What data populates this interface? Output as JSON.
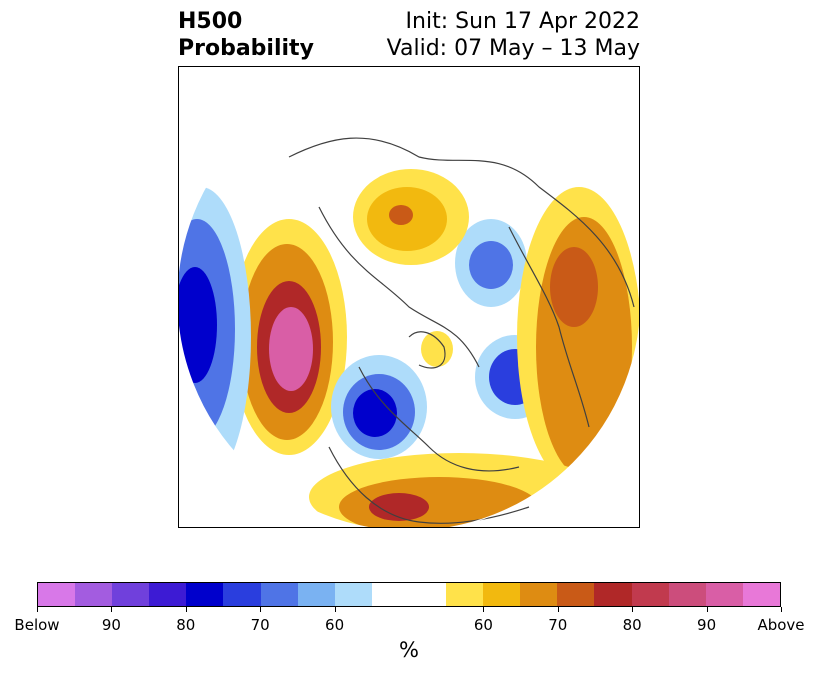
{
  "title": {
    "left_line1": "H500",
    "left_line2": "Probability",
    "right_line1": "Init: Sun 17 Apr 2022",
    "right_line2": "Valid: 07 May – 13 May"
  },
  "colorbar": {
    "unit": "%",
    "colors": [
      "#d878e8",
      "#a35ce0",
      "#7040dc",
      "#3d1bd4",
      "#0000cc",
      "#2a3ede",
      "#4f74e6",
      "#7ab2f2",
      "#aedcfa",
      "#ffffff",
      "#ffffff",
      "#ffe24a",
      "#f2b90f",
      "#de8c12",
      "#c95a17",
      "#b02828",
      "#c13a4e",
      "#cc4d7c",
      "#d95ea6",
      "#e878d8"
    ],
    "labels": [
      "Below",
      "90",
      "80",
      "70",
      "60",
      "60",
      "70",
      "80",
      "90",
      "Above"
    ]
  },
  "map": {
    "projection": "north-polar-stereographic",
    "feature_colors": {
      "coast": "#404040",
      "above_high": "#d95ea6",
      "above_mid": "#b02828",
      "above_low": "#ffe24a",
      "below_high": "#0000cc",
      "below_mid": "#4f74e6",
      "below_low": "#aedcfa"
    }
  }
}
